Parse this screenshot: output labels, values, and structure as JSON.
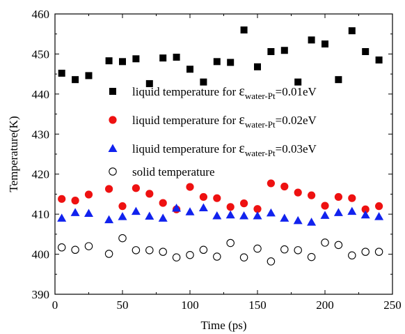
{
  "chart_data": {
    "type": "scatter",
    "xlabel": "Time (ps)",
    "ylabel": "Temperature(K)",
    "xlim": [
      0,
      250
    ],
    "ylim": [
      390,
      460
    ],
    "xticks": [
      0,
      50,
      100,
      150,
      200,
      250
    ],
    "yticks": [
      390,
      400,
      410,
      420,
      430,
      440,
      450,
      460
    ],
    "grid": false,
    "legend_position": "center-left",
    "x": [
      5,
      15,
      25,
      40,
      50,
      60,
      70,
      80,
      90,
      100,
      110,
      120,
      130,
      140,
      150,
      160,
      170,
      180,
      190,
      200,
      210,
      220,
      230,
      240
    ],
    "series": [
      {
        "name_prefix": "liquid temperature for ",
        "name_symbol": "ε",
        "name_sub": "water-Pt",
        "name_suffix": "=0.01eV",
        "marker": "square",
        "color": "#000000",
        "values": [
          445.2,
          443.6,
          444.6,
          448.3,
          448.1,
          448.8,
          442.6,
          449.0,
          449.2,
          446.2,
          443.0,
          448.1,
          447.9,
          456.0,
          446.8,
          450.6,
          450.9,
          443.0,
          453.5,
          452.5,
          443.6,
          455.8,
          450.6,
          448.5
        ]
      },
      {
        "name_prefix": "liquid temperature for ",
        "name_symbol": "ε",
        "name_sub": "water-Pt",
        "name_suffix": "=0.02eV",
        "marker": "circle-filled",
        "color": "#ee1111",
        "values": [
          413.8,
          413.4,
          414.9,
          416.3,
          412.0,
          416.5,
          415.1,
          412.8,
          411.2,
          416.8,
          414.3,
          414.0,
          411.8,
          412.7,
          411.3,
          417.7,
          416.9,
          415.4,
          414.7,
          412.1,
          414.3,
          414.0,
          411.2,
          412.0
        ]
      },
      {
        "name_prefix": "liquid temperature for ",
        "name_symbol": "ε",
        "name_sub": "water-Pt",
        "name_suffix": "=0.03eV",
        "marker": "triangle",
        "color": "#1122ee",
        "values": [
          409.0,
          410.4,
          410.2,
          408.6,
          409.4,
          410.7,
          409.5,
          409.0,
          411.5,
          410.6,
          411.6,
          409.6,
          409.8,
          409.6,
          409.6,
          410.3,
          409.0,
          408.4,
          408.0,
          409.7,
          410.4,
          410.7,
          409.8,
          409.4
        ]
      },
      {
        "name": "solid temperature",
        "marker": "circle-open",
        "color": "#000000",
        "values": [
          401.7,
          401.1,
          402.0,
          400.1,
          404.0,
          401.0,
          401.0,
          400.6,
          399.2,
          399.8,
          401.1,
          399.4,
          402.8,
          399.2,
          401.4,
          398.2,
          401.2,
          401.0,
          399.3,
          402.9,
          402.3,
          399.7,
          400.6,
          400.6
        ]
      }
    ]
  }
}
